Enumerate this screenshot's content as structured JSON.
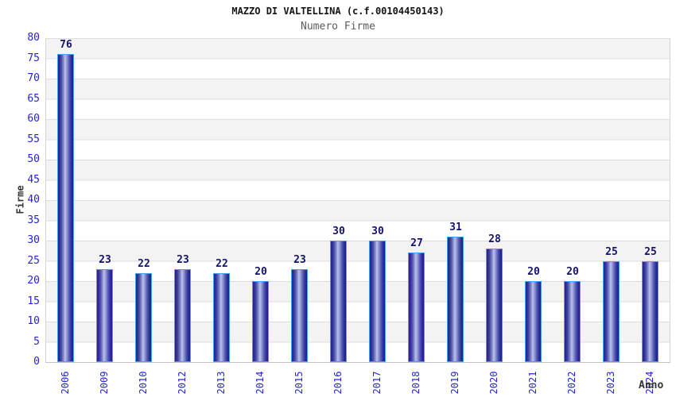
{
  "chart_data": {
    "type": "bar",
    "title": "MAZZO DI VALTELLINA (c.f.00104450143)",
    "subtitle": "Numero Firme",
    "xlabel": "Anno",
    "ylabel": "Firme",
    "categories": [
      "2006",
      "2009",
      "2010",
      "2012",
      "2013",
      "2014",
      "2015",
      "2016",
      "2017",
      "2018",
      "2019",
      "2020",
      "2021",
      "2022",
      "2023",
      "2024"
    ],
    "values": [
      76,
      23,
      22,
      23,
      22,
      20,
      23,
      30,
      30,
      27,
      31,
      28,
      20,
      20,
      25,
      25
    ],
    "ylim": [
      0,
      80
    ],
    "ytick_step": 5,
    "grid": true,
    "legend": "none",
    "colors": {
      "bar_dark": "#24248e",
      "bar_light": "#bcc1ea",
      "bar_border": "#46a2f5",
      "tick_label": "#2424dd",
      "value_label": "#13136e",
      "title": "#141414",
      "subtitle": "#5c5c5c",
      "axis_title": "#333333",
      "stripe": "#f3f3f3",
      "gridline": "#dddddd"
    }
  }
}
